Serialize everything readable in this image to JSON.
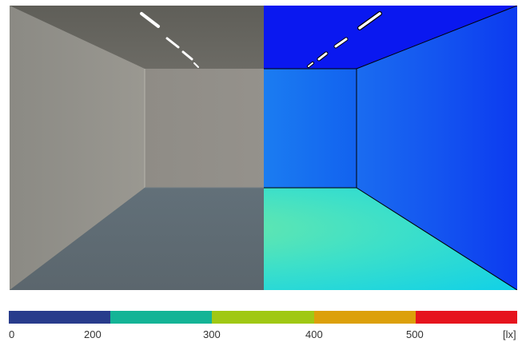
{
  "render": {
    "left_view": "realistic-render",
    "right_view": "false-color-illuminance"
  },
  "legend": {
    "colors": [
      "#283c8c",
      "#14b496",
      "#a0c814",
      "#dca00a",
      "#e6141e"
    ],
    "ticks": [
      "0",
      "200",
      "300",
      "400",
      "500"
    ],
    "unit": "[lx]"
  }
}
